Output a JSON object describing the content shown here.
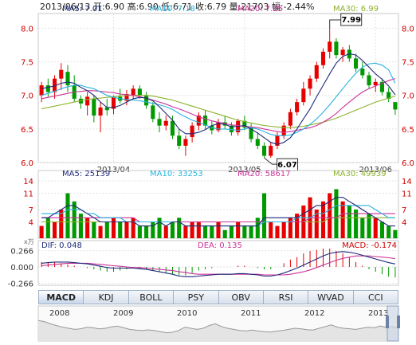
{
  "header": {
    "text": "2013/06/13 开:6.90  高:6.90  低:6.71  收:6.79  量:21703  幅:-2.44%"
  },
  "colors": {
    "up": "#e60000",
    "down": "#009900",
    "ma5": "#1f2a7a",
    "ma10": "#27b3e0",
    "ma20": "#cc3399",
    "ma30": "#8db22c",
    "frame": "#c8c8c8",
    "grid": "#e2e2e2"
  },
  "price_panel": {
    "legend": {
      "ma5": "MA5: 7.01",
      "ma10": "MA10: 7.18",
      "ma20": "MA20: 7.25",
      "ma30": "MA30: 6.99"
    },
    "yticks": [
      "8.0",
      "7.5",
      "7.0",
      "6.5",
      "6.0"
    ],
    "xticks": [
      "2013/04",
      "2013/05",
      "2013/06"
    ],
    "high_marker": "7.99",
    "low_marker": "6.07"
  },
  "volume_panel": {
    "legend": {
      "ma5": "MA5: 25139",
      "ma10": "MA10: 33253",
      "ma20": "MA20: 58617",
      "ma30": "MA30: 49939"
    },
    "yticks": [
      "14",
      "11",
      "7",
      "4"
    ],
    "unit": "x万"
  },
  "macd_panel": {
    "legend": {
      "dif": "DIF: 0.048",
      "dea": "DEA: 0.135",
      "macd": "MACD: -0.174"
    },
    "yticks": [
      "0.266",
      "0.000",
      "-0.266"
    ]
  },
  "tabs": [
    "MACD",
    "KDJ",
    "BOLL",
    "PSY",
    "OBV",
    "RSI",
    "WVAD",
    "CCI"
  ],
  "active_tab": "MACD",
  "navigator": {
    "years": [
      "2008",
      "2009",
      "2010",
      "2011",
      "2012",
      "2013"
    ]
  },
  "chart_data": {
    "type": "candlestick",
    "title": "",
    "ylim": [
      6.0,
      8.1
    ],
    "candles": [
      [
        7.0,
        7.2,
        6.9,
        7.15
      ],
      [
        7.15,
        7.25,
        6.98,
        7.05
      ],
      [
        7.05,
        7.3,
        6.95,
        7.25
      ],
      [
        7.25,
        7.48,
        7.08,
        7.38
      ],
      [
        7.35,
        7.45,
        7.05,
        7.15
      ],
      [
        7.15,
        7.3,
        6.9,
        6.95
      ],
      [
        6.95,
        7.0,
        6.8,
        6.88
      ],
      [
        6.85,
        7.05,
        6.7,
        6.98
      ],
      [
        6.95,
        7.0,
        6.6,
        6.7
      ],
      [
        6.7,
        6.9,
        6.45,
        6.82
      ],
      [
        6.82,
        6.95,
        6.7,
        6.78
      ],
      [
        6.8,
        7.0,
        6.72,
        6.98
      ],
      [
        6.98,
        7.1,
        6.88,
        6.92
      ],
      [
        6.92,
        7.08,
        6.85,
        7.02
      ],
      [
        7.0,
        7.15,
        6.95,
        7.1
      ],
      [
        7.1,
        7.15,
        6.95,
        7.0
      ],
      [
        7.0,
        7.05,
        6.8,
        6.85
      ],
      [
        6.85,
        6.9,
        6.6,
        6.65
      ],
      [
        6.65,
        6.75,
        6.45,
        6.55
      ],
      [
        6.55,
        6.7,
        6.48,
        6.62
      ],
      [
        6.62,
        6.7,
        6.35,
        6.4
      ],
      [
        6.4,
        6.5,
        6.2,
        6.25
      ],
      [
        6.25,
        6.4,
        6.1,
        6.35
      ],
      [
        6.38,
        6.6,
        6.3,
        6.55
      ],
      [
        6.55,
        6.75,
        6.48,
        6.7
      ],
      [
        6.7,
        6.78,
        6.5,
        6.55
      ],
      [
        6.55,
        6.62,
        6.42,
        6.48
      ],
      [
        6.48,
        6.65,
        6.45,
        6.6
      ],
      [
        6.6,
        6.7,
        6.5,
        6.55
      ],
      [
        6.55,
        6.6,
        6.4,
        6.45
      ],
      [
        6.45,
        6.65,
        6.4,
        6.62
      ],
      [
        6.62,
        6.7,
        6.48,
        6.52
      ],
      [
        6.52,
        6.58,
        6.3,
        6.35
      ],
      [
        6.35,
        6.45,
        6.2,
        6.25
      ],
      [
        6.25,
        6.3,
        6.07,
        6.1
      ],
      [
        6.1,
        6.3,
        6.07,
        6.25
      ],
      [
        6.25,
        6.45,
        6.2,
        6.4
      ],
      [
        6.4,
        6.6,
        6.35,
        6.55
      ],
      [
        6.55,
        6.8,
        6.5,
        6.75
      ],
      [
        6.75,
        6.95,
        6.7,
        6.9
      ],
      [
        6.9,
        7.2,
        6.85,
        7.1
      ],
      [
        7.1,
        7.3,
        7.0,
        7.25
      ],
      [
        7.25,
        7.5,
        7.2,
        7.45
      ],
      [
        7.45,
        7.7,
        7.4,
        7.65
      ],
      [
        7.65,
        7.99,
        7.55,
        7.8
      ],
      [
        7.8,
        7.85,
        7.55,
        7.6
      ],
      [
        7.6,
        7.72,
        7.5,
        7.68
      ],
      [
        7.68,
        7.75,
        7.5,
        7.55
      ],
      [
        7.55,
        7.62,
        7.35,
        7.4
      ],
      [
        7.4,
        7.5,
        7.25,
        7.3
      ],
      [
        7.3,
        7.35,
        7.1,
        7.15
      ],
      [
        7.15,
        7.25,
        7.05,
        7.2
      ],
      [
        7.2,
        7.25,
        7.0,
        7.05
      ],
      [
        7.05,
        7.12,
        6.9,
        6.95
      ],
      [
        6.9,
        6.9,
        6.71,
        6.79
      ]
    ],
    "ma5": [
      7.1,
      7.12,
      7.14,
      7.18,
      7.2,
      7.18,
      7.12,
      7.07,
      7.0,
      6.9,
      6.82,
      6.82,
      6.85,
      6.9,
      6.95,
      6.97,
      6.96,
      6.92,
      6.83,
      6.73,
      6.63,
      6.5,
      6.43,
      6.43,
      6.45,
      6.49,
      6.55,
      6.58,
      6.57,
      6.53,
      6.54,
      6.55,
      6.5,
      6.44,
      6.37,
      6.3,
      6.27,
      6.3,
      6.37,
      6.5,
      6.65,
      6.8,
      6.98,
      7.15,
      7.32,
      7.48,
      7.58,
      7.62,
      7.6,
      7.52,
      7.42,
      7.32,
      7.24,
      7.14,
      7.01
    ],
    "ma10": [
      7.0,
      7.03,
      7.06,
      7.1,
      7.13,
      7.15,
      7.15,
      7.12,
      7.1,
      7.05,
      7.0,
      6.97,
      6.95,
      6.94,
      6.93,
      6.92,
      6.9,
      6.88,
      6.86,
      6.83,
      6.79,
      6.73,
      6.68,
      6.63,
      6.6,
      6.56,
      6.52,
      6.5,
      6.5,
      6.49,
      6.48,
      6.5,
      6.52,
      6.5,
      6.46,
      6.42,
      6.4,
      6.4,
      6.41,
      6.45,
      6.5,
      6.57,
      6.65,
      6.75,
      6.86,
      6.98,
      7.1,
      7.22,
      7.33,
      7.42,
      7.47,
      7.48,
      7.45,
      7.38,
      7.18
    ],
    "ma20": [
      6.95,
      6.97,
      6.99,
      7.01,
      7.03,
      7.05,
      7.06,
      7.07,
      7.07,
      7.06,
      7.05,
      7.04,
      7.02,
      7.01,
      7.0,
      6.98,
      6.96,
      6.93,
      6.9,
      6.87,
      6.83,
      6.8,
      6.76,
      6.72,
      6.68,
      6.65,
      6.62,
      6.6,
      6.58,
      6.56,
      6.55,
      6.54,
      6.53,
      6.52,
      6.5,
      6.48,
      6.46,
      6.45,
      6.46,
      6.48,
      6.5,
      6.52,
      6.55,
      6.6,
      6.66,
      6.73,
      6.82,
      6.9,
      6.98,
      7.05,
      7.1,
      7.14,
      7.18,
      7.22,
      7.25
    ],
    "ma30": [
      6.8,
      6.82,
      6.84,
      6.86,
      6.88,
      6.9,
      6.92,
      6.94,
      6.95,
      6.96,
      6.97,
      6.98,
      6.99,
      7.0,
      7.0,
      7.0,
      7.0,
      6.99,
      6.97,
      6.95,
      6.93,
      6.9,
      6.87,
      6.84,
      6.81,
      6.78,
      6.75,
      6.72,
      6.69,
      6.66,
      6.63,
      6.61,
      6.59,
      6.57,
      6.55,
      6.54,
      6.53,
      6.52,
      6.52,
      6.53,
      6.54,
      6.56,
      6.58,
      6.6,
      6.63,
      6.66,
      6.7,
      6.74,
      6.78,
      6.82,
      6.86,
      6.9,
      6.93,
      6.96,
      6.99
    ],
    "volume": [
      3,
      5,
      4,
      7,
      11,
      9,
      6,
      5,
      4,
      3,
      4,
      5,
      4,
      4,
      5,
      3,
      3,
      4,
      5,
      3,
      4,
      5,
      3,
      4,
      4,
      3,
      3,
      4,
      2,
      3,
      4,
      3,
      3,
      5,
      11,
      4,
      3,
      4,
      5,
      6,
      8,
      10,
      7,
      9,
      11,
      12,
      9,
      8,
      7,
      5,
      6,
      5,
      4,
      3,
      2
    ],
    "volume_ma": {
      "ma5": [
        5,
        5,
        6,
        7,
        8,
        8,
        7,
        6,
        5,
        4,
        4,
        4,
        4,
        4,
        4,
        3,
        3,
        3,
        4,
        3,
        4,
        4,
        3,
        3,
        3,
        3,
        3,
        3,
        3,
        3,
        3,
        3,
        3,
        3,
        5,
        5,
        5,
        5,
        5,
        5,
        6,
        7,
        8,
        8,
        9,
        10,
        10,
        9,
        8,
        7,
        6,
        5,
        4,
        3,
        3
      ],
      "ma10": [
        6,
        6,
        6,
        6,
        7,
        7,
        7,
        6,
        6,
        5,
        5,
        5,
        5,
        4,
        4,
        4,
        4,
        4,
        4,
        4,
        4,
        4,
        3,
        3,
        3,
        3,
        3,
        3,
        3,
        3,
        3,
        3,
        3,
        3,
        4,
        4,
        4,
        4,
        4,
        5,
        5,
        5,
        6,
        6,
        7,
        8,
        8,
        8,
        8,
        8,
        8,
        7,
        6,
        5,
        5
      ],
      "ma20": [
        5,
        5,
        5,
        5,
        5,
        5,
        5,
        5,
        5,
        5,
        5,
        5,
        5,
        5,
        5,
        4,
        4,
        4,
        4,
        4,
        4,
        4,
        4,
        4,
        4,
        4,
        4,
        4,
        4,
        4,
        4,
        4,
        4,
        4,
        4,
        4,
        4,
        4,
        4,
        4,
        4,
        5,
        5,
        5,
        5,
        5,
        6,
        6,
        6,
        6,
        6,
        6,
        6,
        6,
        6
      ],
      "ma30": [
        4,
        4,
        4,
        4,
        4,
        4,
        4,
        4,
        4,
        4,
        4,
        4,
        4,
        4,
        4,
        4,
        4,
        4,
        4,
        4,
        4,
        4,
        4,
        4,
        4,
        4,
        4,
        4,
        4,
        4,
        4,
        4,
        4,
        4,
        4,
        4,
        4,
        4,
        4,
        4,
        4,
        4,
        4,
        4,
        5,
        5,
        5,
        5,
        5,
        5,
        5,
        5,
        5,
        5,
        5
      ]
    },
    "macd": {
      "dif": [
        0.06,
        0.07,
        0.08,
        0.08,
        0.08,
        0.07,
        0.06,
        0.05,
        0.03,
        0.01,
        -0.01,
        -0.02,
        -0.02,
        -0.02,
        -0.02,
        -0.03,
        -0.04,
        -0.06,
        -0.08,
        -0.1,
        -0.12,
        -0.15,
        -0.16,
        -0.16,
        -0.15,
        -0.14,
        -0.13,
        -0.12,
        -0.12,
        -0.12,
        -0.11,
        -0.11,
        -0.12,
        -0.13,
        -0.15,
        -0.15,
        -0.13,
        -0.1,
        -0.06,
        -0.02,
        0.03,
        0.08,
        0.13,
        0.18,
        0.22,
        0.24,
        0.25,
        0.24,
        0.22,
        0.19,
        0.16,
        0.13,
        0.1,
        0.07,
        0.048
      ],
      "dea": [
        0.02,
        0.03,
        0.04,
        0.05,
        0.06,
        0.06,
        0.06,
        0.06,
        0.05,
        0.04,
        0.03,
        0.02,
        0.01,
        0.0,
        -0.01,
        -0.01,
        -0.02,
        -0.03,
        -0.04,
        -0.05,
        -0.06,
        -0.08,
        -0.09,
        -0.11,
        -0.12,
        -0.12,
        -0.12,
        -0.12,
        -0.12,
        -0.12,
        -0.12,
        -0.12,
        -0.12,
        -0.12,
        -0.13,
        -0.13,
        -0.13,
        -0.13,
        -0.12,
        -0.1,
        -0.08,
        -0.05,
        -0.01,
        0.03,
        0.07,
        0.11,
        0.14,
        0.16,
        0.18,
        0.18,
        0.18,
        0.17,
        0.16,
        0.15,
        0.135
      ],
      "hist": [
        0.08,
        0.08,
        0.08,
        0.06,
        0.04,
        0.02,
        0.0,
        -0.02,
        -0.04,
        -0.06,
        -0.08,
        -0.08,
        -0.06,
        -0.04,
        -0.02,
        -0.04,
        -0.04,
        -0.06,
        -0.08,
        -0.1,
        -0.12,
        -0.14,
        -0.14,
        -0.1,
        -0.06,
        -0.04,
        -0.02,
        0.0,
        0.0,
        0.0,
        0.02,
        0.02,
        0.0,
        -0.02,
        -0.04,
        -0.04,
        0.0,
        0.06,
        0.12,
        0.16,
        0.22,
        0.26,
        0.28,
        0.3,
        0.3,
        0.26,
        0.22,
        0.16,
        0.08,
        0.02,
        -0.04,
        -0.08,
        -0.12,
        -0.16,
        -0.174
      ]
    },
    "navigator_series": [
      0.85,
      0.8,
      0.7,
      0.62,
      0.55,
      0.5,
      0.45,
      0.48,
      0.55,
      0.52,
      0.47,
      0.5,
      0.56,
      0.6,
      0.52,
      0.45,
      0.42,
      0.4,
      0.43,
      0.4,
      0.35,
      0.3,
      0.32,
      0.4,
      0.55,
      0.5,
      0.45,
      0.5,
      0.62,
      0.7,
      0.58,
      0.5,
      0.45,
      0.4,
      0.38,
      0.42,
      0.38,
      0.35,
      0.33,
      0.37,
      0.4,
      0.45,
      0.5,
      0.48,
      0.44,
      0.42,
      0.5,
      0.58,
      0.65,
      0.55,
      0.5,
      0.48,
      0.45,
      0.5,
      0.55,
      0.52,
      0.6,
      0.55,
      0.58,
      0.5
    ]
  }
}
